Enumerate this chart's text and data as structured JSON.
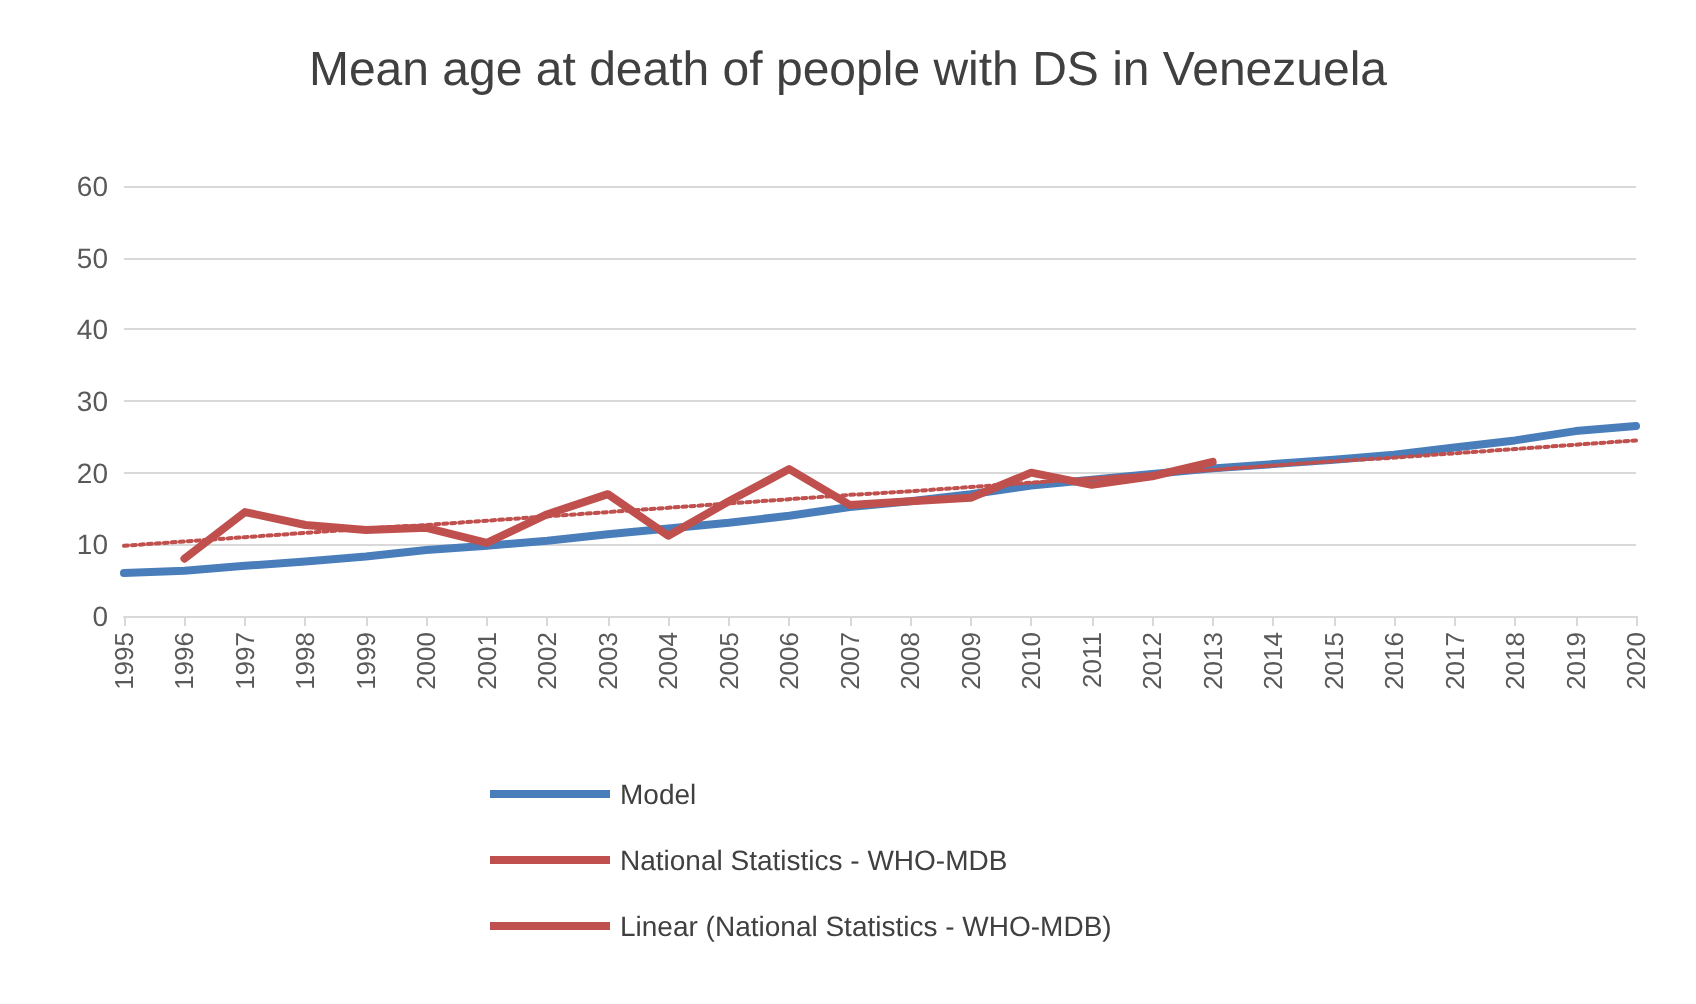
{
  "chart_data": {
    "type": "line",
    "title": "Mean age at death of people with DS in Venezuela",
    "categories": [
      "1995",
      "1996",
      "1997",
      "1998",
      "1999",
      "2000",
      "2001",
      "2002",
      "2003",
      "2004",
      "2005",
      "2006",
      "2007",
      "2008",
      "2009",
      "2010",
      "2011",
      "2012",
      "2013",
      "2014",
      "2015",
      "2016",
      "2017",
      "2018",
      "2019",
      "2020"
    ],
    "series": [
      {
        "name": "Model",
        "color": "#4a7ebb",
        "values": [
          6,
          6.3,
          7,
          7.6,
          8.3,
          9.2,
          9.8,
          10.5,
          11.4,
          12.2,
          13,
          14,
          15.2,
          16,
          17,
          18.2,
          19,
          19.8,
          20.6,
          21.2,
          21.8,
          22.5,
          23.5,
          24.5,
          25.8,
          26.5
        ]
      },
      {
        "name": "National Statistics - WHO-MDB",
        "color": "#c0504d",
        "values": [
          null,
          8,
          14.5,
          12.7,
          12,
          12.3,
          10.2,
          14.2,
          17,
          11.2,
          16,
          20.5,
          15.5,
          16,
          16.5,
          20,
          18.3,
          19.5,
          21.5,
          null,
          null,
          null,
          null,
          null,
          null,
          null
        ]
      },
      {
        "name": "Linear (National Statistics - WHO-MDB)",
        "color": "#c0504d",
        "line_style": "dotted",
        "values": [
          9.8,
          10.4,
          11.0,
          11.6,
          12.2,
          12.7,
          13.3,
          13.9,
          14.5,
          15.1,
          15.7,
          16.3,
          16.9,
          17.4,
          18.0,
          18.6,
          19.2,
          19.8,
          20.4,
          21.0,
          21.6,
          22.1,
          22.7,
          23.3,
          23.9,
          24.5
        ]
      }
    ],
    "ylim": [
      0,
      60
    ],
    "yticks": [
      0,
      10,
      20,
      30,
      40,
      50,
      60
    ],
    "grid": "y",
    "legend": "bottom",
    "marker": "none",
    "line_style": "solid"
  }
}
